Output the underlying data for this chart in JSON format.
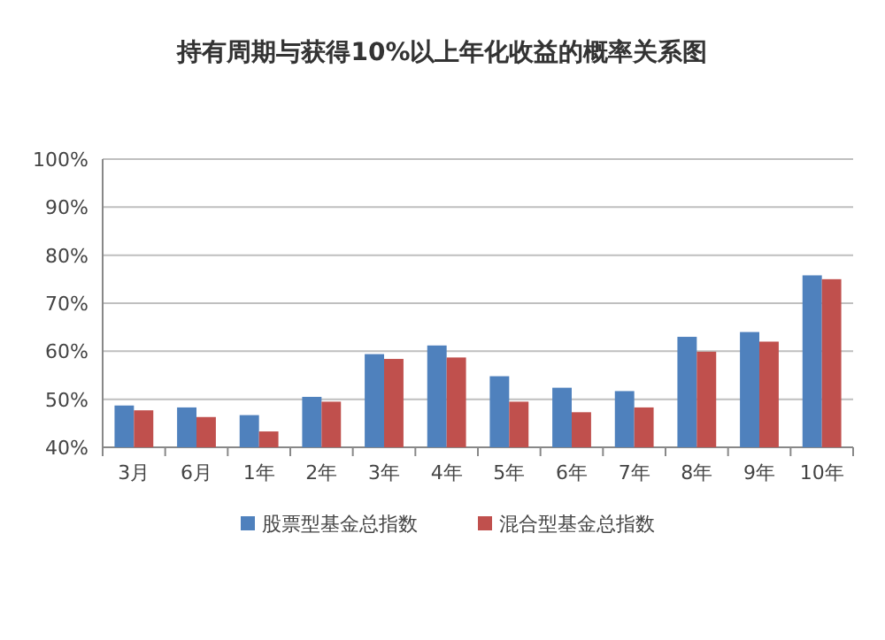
{
  "chart_data": {
    "type": "bar",
    "title": "持有周期与获得10%以上年化收益的概率关系图",
    "categories": [
      "3月",
      "6月",
      "1年",
      "2年",
      "3年",
      "4年",
      "5年",
      "6年",
      "7年",
      "8年",
      "9年",
      "10年"
    ],
    "series": [
      {
        "name": "股票型基金总指数",
        "color": "#4f81bd",
        "values": [
          48.7,
          48.3,
          46.7,
          50.5,
          59.4,
          61.2,
          54.8,
          52.4,
          51.7,
          63,
          64,
          75.8
        ]
      },
      {
        "name": "混合型基金总指数",
        "color": "#c0504d",
        "values": [
          47.7,
          46.3,
          43.3,
          49.5,
          58.4,
          58.7,
          49.5,
          47.3,
          48.3,
          59.9,
          62,
          75
        ]
      }
    ],
    "ylim": [
      40,
      100
    ],
    "yticks": [
      {
        "value": 40,
        "label": "40%"
      },
      {
        "value": 50,
        "label": "50%"
      },
      {
        "value": 60,
        "label": "60%"
      },
      {
        "value": 70,
        "label": "70%"
      },
      {
        "value": 80,
        "label": "80%"
      },
      {
        "value": 90,
        "label": "90%"
      },
      {
        "value": 100,
        "label": "100%"
      }
    ],
    "grid": "y",
    "legend": "bottom"
  }
}
